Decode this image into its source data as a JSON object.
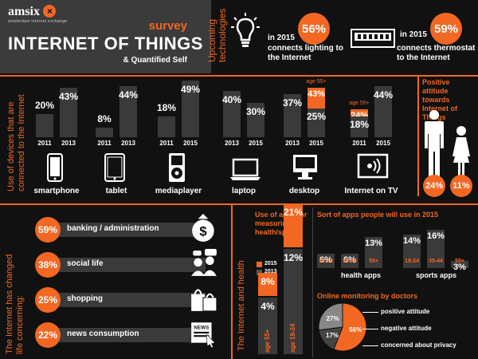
{
  "header": {
    "logo_text": "amsix",
    "logo_sub": "amsterdam internet exchange",
    "survey": "survey",
    "title": "INTERNET OF THINGS",
    "subtitle": "& Quantified Self"
  },
  "upcoming": {
    "side_label_1": "Upcoming",
    "side_label_2": "technologies",
    "items": [
      {
        "year": "in 2015",
        "value": "56%",
        "text": "connects lighting to the Internet",
        "icon": "lightbulb-icon"
      },
      {
        "year": "in 2015",
        "value": "59%",
        "text": "connects thermostat to the Internet",
        "icon": "thermostat-icon"
      }
    ]
  },
  "devices": {
    "side_label_1": "Use of devices that are",
    "side_label_2": "connected to the Internet",
    "groups": [
      {
        "label": "smartphone",
        "icon": "smartphone-icon",
        "bars": [
          {
            "year": "2011",
            "value": 20,
            "text": "20%"
          },
          {
            "year": "2013",
            "value": 43,
            "text": "43%"
          }
        ]
      },
      {
        "label": "tablet",
        "icon": "tablet-icon",
        "bars": [
          {
            "year": "2011",
            "value": 8,
            "text": "8%"
          },
          {
            "year": "2013",
            "value": 44,
            "text": "44%"
          }
        ]
      },
      {
        "label": "mediaplayer",
        "icon": "mediaplayer-icon",
        "bars": [
          {
            "year": "2011",
            "value": 18,
            "text": "18%"
          },
          {
            "year": "2015",
            "value": 49,
            "text": "49%"
          }
        ]
      },
      {
        "label": "laptop",
        "icon": "laptop-icon",
        "bars": [
          {
            "year": "2013",
            "value": 40,
            "text": "40%"
          },
          {
            "year": "2015",
            "value": 30,
            "text": "30%"
          }
        ]
      },
      {
        "label": "desktop",
        "icon": "desktop-icon",
        "bars": [
          {
            "year": "2013",
            "value": 37,
            "text": "37%"
          },
          {
            "year": "2015",
            "value": 25,
            "text": "25%",
            "overlay": 43,
            "overlay_text": "43%",
            "overlay_label": "age 55+"
          }
        ]
      },
      {
        "label": "Internet on TV",
        "icon": "tv-icon",
        "bars": [
          {
            "year": "2011",
            "value": 18,
            "text": "18%",
            "overlay": 24,
            "overlay_text": "24%",
            "overlay_label": "age 55+"
          },
          {
            "year": "2015",
            "value": 44,
            "text": "44%"
          }
        ]
      }
    ]
  },
  "attitude": {
    "label": "Positive attitude towards Internet of Things",
    "man": "24%",
    "woman": "11%"
  },
  "life": {
    "side_label_1": "The Internet has changed",
    "side_label_2": "life concerning:",
    "items": [
      {
        "value": 59,
        "text": "59%",
        "label": "banking / administration",
        "icon": "money-bag-icon"
      },
      {
        "value": 38,
        "text": "38%",
        "label": "social life",
        "icon": "people-chat-icon"
      },
      {
        "value": 25,
        "text": "25%",
        "label": "shopping",
        "icon": "shopping-bags-icon"
      },
      {
        "value": 22,
        "text": "22%",
        "label": "news consumption",
        "icon": "newspaper-icon"
      }
    ]
  },
  "health": {
    "side_label": "The Internet and health",
    "apps_title": "Use of apps for measuring health/sports",
    "legend": [
      {
        "year": "2015",
        "color": "#f26722"
      },
      {
        "year": "2013",
        "color": "#555555"
      }
    ],
    "groups": [
      {
        "label": "age 55+",
        "v2015": 8,
        "t2015": "8%",
        "v2013": 4,
        "t2013": "4%"
      },
      {
        "label": "age 18-24",
        "v2015": 21,
        "t2015": "21%",
        "v2013": 12,
        "t2013": "12%"
      }
    ],
    "sort_title": "Sort of apps people will use in 2015",
    "health_apps": {
      "label": "health apps",
      "bars": [
        {
          "value": 6,
          "text": "6%",
          "age": "18-24"
        },
        {
          "value": 6,
          "text": "6%",
          "age": "35-44"
        },
        {
          "value": 13,
          "text": "13%",
          "age": "55+"
        }
      ]
    },
    "sports_apps": {
      "label": "sports apps",
      "bars": [
        {
          "value": 14,
          "text": "14%",
          "age": "18-24"
        },
        {
          "value": 16,
          "text": "16%",
          "age": "35-44"
        },
        {
          "value": 3,
          "text": "3%",
          "age": "55+"
        }
      ]
    },
    "monitoring_title": "Online monitoring by doctors",
    "monitoring": [
      {
        "label": "positive attitude",
        "value": 56,
        "text": "56%",
        "color": "#f26722"
      },
      {
        "label": "negative attitude",
        "value": 17,
        "text": "17%",
        "color": "#444444"
      },
      {
        "label": "concerned about privacy",
        "value": 27,
        "text": "27%",
        "color": "#888888"
      }
    ]
  },
  "chart_data": {
    "type": "bar",
    "title": "INTERNET OF THINGS",
    "series": []
  },
  "colors": {
    "accent": "#f26722",
    "bar": "#3a3a3a",
    "bg": "#111111"
  }
}
